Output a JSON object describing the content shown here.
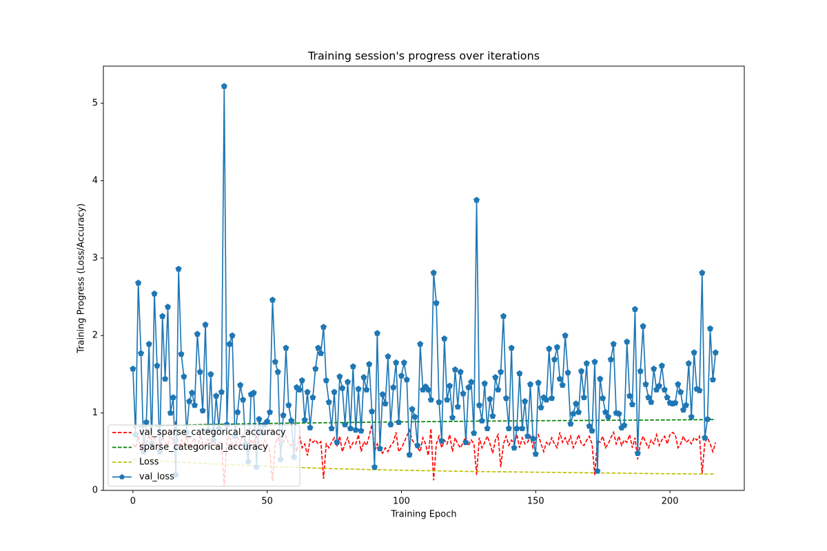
{
  "chart_data": {
    "type": "line",
    "title": "Training session's progress over iterations",
    "xlabel": "Training Epoch",
    "ylabel": "Training Progress (Loss/Accuracy)",
    "xlim": [
      -11,
      227.7
    ],
    "ylim": [
      0,
      5.48
    ],
    "xticks": [
      0,
      50,
      100,
      150,
      200
    ],
    "yticks": [
      0,
      1,
      2,
      3,
      4,
      5
    ],
    "grid": false,
    "legend": "lower left",
    "series": [
      {
        "name": "val_sparse_categorical_accuracy",
        "color": "#ff0000",
        "linestyle": "dashed",
        "x": [
          0,
          1,
          2,
          3,
          4,
          5,
          6,
          7,
          8,
          9,
          10,
          11,
          12,
          13,
          14,
          15,
          16,
          17,
          18,
          19,
          20,
          21,
          22,
          23,
          24,
          25,
          26,
          27,
          28,
          29,
          30,
          31,
          32,
          33,
          34,
          35,
          36,
          37,
          38,
          39,
          40,
          41,
          42,
          43,
          44,
          45,
          46,
          47,
          48,
          49,
          50,
          51,
          52,
          53,
          54,
          55,
          56,
          57,
          58,
          59,
          60,
          61,
          62,
          63,
          64,
          65,
          66,
          67,
          68,
          69,
          70,
          71,
          72,
          73,
          74,
          75,
          76,
          77,
          78,
          79,
          80,
          81,
          82,
          83,
          84,
          85,
          86,
          87,
          88,
          89,
          90,
          91,
          92,
          93,
          94,
          95,
          96,
          97,
          98,
          99,
          100,
          101,
          102,
          103,
          104,
          105,
          106,
          107,
          108,
          109,
          110,
          111,
          112,
          113,
          114,
          115,
          116,
          117,
          118,
          119,
          120,
          121,
          122,
          123,
          124,
          125,
          126,
          127,
          128,
          129,
          130,
          131,
          132,
          133,
          134,
          135,
          136,
          137,
          138,
          139,
          140,
          141,
          142,
          143,
          144,
          145,
          146,
          147,
          148,
          149,
          150,
          151,
          152,
          153,
          154,
          155,
          156,
          157,
          158,
          159,
          160,
          161,
          162,
          163,
          164,
          165,
          166,
          167,
          168,
          169,
          170,
          171,
          172,
          173,
          174,
          175,
          176,
          177,
          178,
          179,
          180,
          181,
          182,
          183,
          184,
          185,
          186,
          187,
          188,
          189,
          190,
          191,
          192,
          193,
          194,
          195,
          196,
          197,
          198,
          199,
          200,
          201,
          202,
          203,
          204,
          205,
          206,
          207,
          208,
          209,
          210,
          211,
          212,
          213,
          214,
          215,
          216,
          217
        ],
        "values": [
          0.6,
          0.55,
          0.7,
          0.5,
          0.65,
          0.6,
          0.72,
          0.55,
          0.68,
          0.6,
          0.5,
          0.7,
          0.62,
          0.58,
          0.75,
          0.6,
          0.9,
          0.55,
          0.65,
          0.6,
          0.7,
          0.55,
          0.62,
          0.68,
          0.5,
          0.72,
          0.6,
          0.58,
          0.66,
          0.6,
          0.7,
          0.55,
          0.62,
          0.6,
          0.05,
          0.65,
          0.7,
          0.6,
          0.55,
          0.68,
          0.6,
          0.72,
          0.58,
          0.5,
          0.66,
          0.6,
          0.7,
          0.62,
          0.55,
          0.65,
          0.6,
          0.5,
          0.12,
          0.6,
          0.68,
          0.55,
          0.62,
          0.7,
          0.6,
          0.58,
          0.65,
          0.5,
          0.72,
          0.55,
          0.6,
          0.45,
          0.66,
          0.62,
          0.65,
          0.6,
          0.63,
          0.15,
          0.6,
          0.55,
          0.62,
          0.68,
          0.58,
          0.7,
          0.5,
          0.6,
          0.68,
          0.55,
          0.62,
          0.6,
          0.72,
          0.5,
          0.63,
          0.58,
          0.7,
          0.85,
          0.5,
          0.6,
          0.52,
          0.48,
          0.55,
          0.5,
          0.58,
          0.62,
          0.75,
          0.5,
          0.55,
          0.62,
          0.7,
          0.78,
          0.65,
          0.6,
          0.55,
          0.5,
          0.68,
          0.6,
          0.45,
          0.8,
          0.13,
          0.6,
          0.7,
          0.55,
          0.65,
          0.6,
          0.72,
          0.5,
          0.68,
          0.6,
          0.55,
          0.62,
          0.7,
          0.58,
          0.65,
          0.6,
          0.2,
          0.68,
          0.55,
          0.62,
          0.7,
          0.6,
          0.48,
          0.65,
          0.72,
          0.3,
          0.6,
          0.7,
          0.58,
          0.65,
          0.6,
          0.72,
          0.55,
          0.68,
          0.6,
          0.62,
          0.7,
          0.55,
          0.65,
          0.72,
          0.6,
          0.5,
          0.62,
          0.58,
          0.68,
          0.6,
          0.55,
          0.75,
          0.62,
          0.68,
          0.6,
          0.7,
          0.55,
          0.62,
          0.72,
          0.6,
          0.58,
          0.65,
          0.7,
          0.6,
          0.2,
          0.65,
          0.62,
          0.7,
          0.55,
          0.6,
          0.68,
          0.75,
          0.6,
          0.7,
          0.58,
          0.65,
          0.62,
          0.72,
          0.55,
          0.68,
          0.4,
          0.6,
          0.7,
          0.62,
          0.55,
          0.65,
          0.6,
          0.72,
          0.58,
          0.65,
          0.7,
          0.6,
          0.72,
          0.75,
          0.72,
          0.55,
          0.6,
          0.7,
          0.62,
          0.65,
          0.6,
          0.68,
          0.65,
          0.7,
          0.22,
          0.62,
          0.68,
          0.6,
          0.5,
          0.62
        ]
      },
      {
        "name": "sparse_categorical_accuracy",
        "color": "#008000",
        "linestyle": "dashed",
        "x": [
          0,
          25,
          50,
          75,
          100,
          125,
          150,
          175,
          200,
          217
        ],
        "values": [
          0.82,
          0.85,
          0.865,
          0.875,
          0.885,
          0.893,
          0.9,
          0.905,
          0.91,
          0.915
        ]
      },
      {
        "name": "Loss",
        "color": "#bfbf00",
        "linestyle": "dashed",
        "x": [
          0,
          25,
          50,
          75,
          100,
          125,
          150,
          175,
          200,
          217
        ],
        "values": [
          0.4,
          0.35,
          0.31,
          0.28,
          0.26,
          0.245,
          0.235,
          0.225,
          0.215,
          0.21
        ]
      },
      {
        "name": "val_loss",
        "color": "#1f77b4",
        "linestyle": "solid",
        "marker": "pentagon",
        "x": [
          0,
          1,
          2,
          3,
          4,
          5,
          6,
          7,
          8,
          9,
          10,
          11,
          12,
          13,
          14,
          15,
          16,
          17,
          18,
          19,
          20,
          21,
          22,
          23,
          24,
          25,
          26,
          27,
          28,
          29,
          30,
          31,
          32,
          33,
          34,
          35,
          36,
          37,
          38,
          39,
          40,
          41,
          42,
          43,
          44,
          45,
          46,
          47,
          48,
          49,
          50,
          51,
          52,
          53,
          54,
          55,
          56,
          57,
          58,
          59,
          60,
          61,
          62,
          63,
          64,
          65,
          66,
          67,
          68,
          69,
          70,
          71,
          72,
          73,
          74,
          75,
          76,
          77,
          78,
          79,
          80,
          81,
          82,
          83,
          84,
          85,
          86,
          87,
          88,
          89,
          90,
          91,
          92,
          93,
          94,
          95,
          96,
          97,
          98,
          99,
          100,
          101,
          102,
          103,
          104,
          105,
          106,
          107,
          108,
          109,
          110,
          111,
          112,
          113,
          114,
          115,
          116,
          117,
          118,
          119,
          120,
          121,
          122,
          123,
          124,
          125,
          126,
          127,
          128,
          129,
          130,
          131,
          132,
          133,
          134,
          135,
          136,
          137,
          138,
          139,
          140,
          141,
          142,
          143,
          144,
          145,
          146,
          147,
          148,
          149,
          150,
          151,
          152,
          153,
          154,
          155,
          156,
          157,
          158,
          159,
          160,
          161,
          162,
          163,
          164,
          165,
          166,
          167,
          168,
          169,
          170,
          171,
          172,
          173,
          174,
          175,
          176,
          177,
          178,
          179,
          180,
          181,
          182,
          183,
          184,
          185,
          186,
          187,
          188,
          189,
          190,
          191,
          192,
          193,
          194,
          195,
          196,
          197,
          198,
          199,
          200,
          201,
          202,
          203,
          204,
          205,
          206,
          207,
          208,
          209,
          210,
          211,
          212,
          213,
          214,
          215,
          216,
          217
        ],
        "values": [
          1.57,
          0.72,
          2.68,
          1.77,
          0.5,
          0.88,
          1.89,
          0.6,
          2.54,
          1.61,
          0.5,
          2.25,
          1.44,
          2.37,
          1.0,
          1.2,
          0.2,
          2.86,
          1.76,
          1.47,
          0.75,
          1.15,
          1.26,
          1.1,
          2.02,
          1.53,
          1.03,
          2.14,
          0.78,
          1.5,
          0.65,
          1.22,
          0.8,
          1.27,
          5.22,
          0.85,
          1.89,
          2.0,
          0.7,
          1.01,
          1.36,
          1.17,
          0.6,
          0.37,
          1.24,
          1.26,
          0.3,
          0.92,
          0.75,
          0.85,
          0.89,
          1.01,
          2.46,
          1.66,
          1.53,
          0.4,
          0.97,
          1.84,
          1.1,
          0.9,
          0.43,
          1.33,
          1.3,
          1.42,
          0.91,
          1.27,
          0.81,
          1.2,
          1.57,
          1.84,
          1.77,
          2.11,
          1.42,
          1.14,
          0.8,
          1.27,
          0.62,
          1.47,
          1.32,
          0.85,
          1.4,
          0.8,
          1.6,
          0.78,
          1.31,
          0.77,
          1.46,
          1.3,
          1.63,
          1.02,
          0.3,
          2.03,
          0.54,
          1.24,
          1.12,
          1.73,
          0.85,
          1.33,
          1.65,
          0.88,
          1.48,
          1.65,
          1.43,
          0.46,
          1.05,
          0.95,
          0.58,
          1.89,
          1.3,
          1.34,
          1.3,
          1.17,
          2.81,
          2.42,
          1.14,
          0.64,
          1.96,
          1.17,
          1.35,
          0.94,
          1.56,
          1.08,
          1.53,
          1.25,
          0.62,
          1.33,
          1.4,
          0.74,
          3.75,
          1.1,
          0.9,
          1.38,
          0.8,
          1.18,
          0.96,
          1.46,
          1.3,
          1.53,
          2.25,
          1.19,
          0.8,
          1.84,
          0.55,
          0.8,
          1.51,
          0.8,
          1.15,
          0.7,
          1.37,
          0.67,
          0.47,
          1.39,
          1.07,
          1.2,
          1.17,
          1.83,
          1.19,
          1.69,
          1.85,
          1.44,
          1.36,
          2.0,
          1.52,
          0.86,
          0.99,
          1.12,
          1.01,
          1.54,
          1.2,
          1.64,
          0.83,
          0.77,
          1.66,
          0.25,
          1.44,
          1.19,
          1.01,
          0.95,
          1.69,
          1.89,
          1.0,
          0.99,
          0.81,
          0.84,
          1.92,
          1.22,
          1.11,
          2.34,
          0.48,
          1.54,
          2.12,
          1.37,
          1.2,
          1.14,
          1.57,
          1.3,
          1.35,
          1.61,
          1.3,
          1.2,
          1.13,
          1.12,
          1.13,
          1.37,
          1.27,
          1.04,
          1.1,
          1.64,
          0.95,
          1.78,
          1.31,
          1.29,
          2.81,
          0.68,
          0.92,
          2.09,
          1.43,
          1.78
        ]
      }
    ]
  }
}
